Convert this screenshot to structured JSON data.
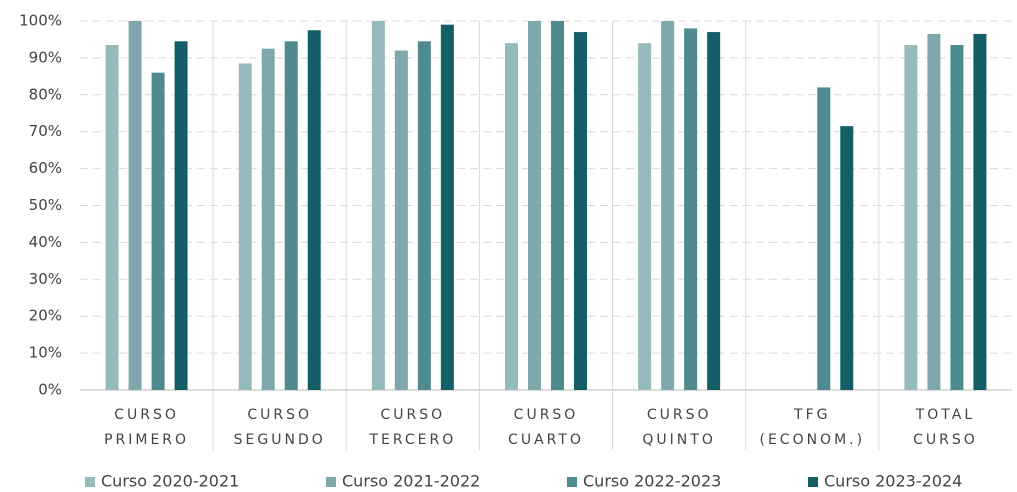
{
  "chart_data": {
    "type": "bar",
    "categories": [
      "CURSO PRIMERO",
      "CURSO SEGUNDO",
      "CURSO TERCERO",
      "CURSO CUARTO",
      "CURSO QUINTO",
      "TFG (ECONOM.)",
      "TOTAL CURSO"
    ],
    "series": [
      {
        "name": "Curso 2020-2021",
        "color": "#97babb",
        "values": [
          93.5,
          88.5,
          100,
          94,
          94,
          null,
          93.5
        ]
      },
      {
        "name": "Curso 2021-2022",
        "color": "#7fa7ac",
        "values": [
          100,
          92.5,
          92,
          100,
          100,
          null,
          96.5
        ]
      },
      {
        "name": "Curso 2022-2023",
        "color": "#4f8a8e",
        "values": [
          86,
          94.5,
          94.5,
          100,
          98,
          82,
          93.5
        ]
      },
      {
        "name": "Curso 2023-2024",
        "color": "#145e66",
        "values": [
          94.5,
          97.5,
          99,
          97,
          97,
          71.5,
          96.5
        ]
      }
    ],
    "ylim": [
      0,
      100
    ],
    "yticks": [
      {
        "value": 0,
        "label": "0%"
      },
      {
        "value": 10,
        "label": "10%"
      },
      {
        "value": 20,
        "label": "20%"
      },
      {
        "value": 30,
        "label": "30%"
      },
      {
        "value": 40,
        "label": "40%"
      },
      {
        "value": 50,
        "label": "50%"
      },
      {
        "value": 60,
        "label": "60%"
      },
      {
        "value": 70,
        "label": "70%"
      },
      {
        "value": 80,
        "label": "80%"
      },
      {
        "value": 90,
        "label": "90%"
      },
      {
        "value": 100,
        "label": "100%"
      }
    ],
    "grid": true,
    "legend": "bottom"
  }
}
